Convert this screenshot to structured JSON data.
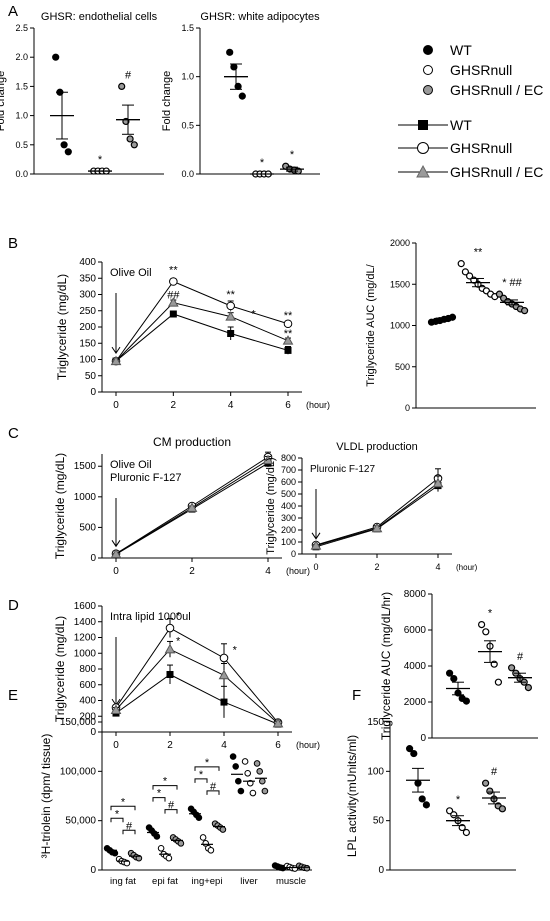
{
  "panels": {
    "A": "A",
    "B": "B",
    "C": "C",
    "D": "D",
    "E": "E",
    "F": "F"
  },
  "legend_points": [
    "WT",
    "GHSRnull",
    "GHSRnull / EC"
  ],
  "legend_lines": [
    "WT",
    "GHSRnull",
    "GHSRnull / EC"
  ],
  "colors": {
    "wt": "#000000",
    "null": "#ffffff",
    "ec": "#9a9a9a",
    "axis": "#000000"
  },
  "chart_data": [
    {
      "id": "A1",
      "type": "scatter",
      "title": "GHSR: endothelial cells",
      "ylabel": "Fold change",
      "ylim": [
        0,
        2.5
      ],
      "yticks": [
        "0.0",
        "0.5",
        "1.0",
        "1.5",
        "2.0",
        "2.5"
      ],
      "groups": [
        {
          "name": "WT",
          "mean": 1.0,
          "sem": 0.4,
          "points": [
            2.0,
            1.4,
            0.5,
            0.38
          ],
          "mark": ""
        },
        {
          "name": "GHSRnull",
          "mean": 0.05,
          "sem": 0.0,
          "points": [
            0.05,
            0.05,
            0.05,
            0.05
          ],
          "mark": "*"
        },
        {
          "name": "GHSRnull / EC",
          "mean": 0.93,
          "sem": 0.25,
          "points": [
            1.5,
            0.9,
            0.6,
            0.5
          ],
          "mark": "#"
        }
      ]
    },
    {
      "id": "A2",
      "type": "scatter",
      "title": "GHSR: white adipocytes",
      "ylabel": "Fold change",
      "ylim": [
        0,
        1.5
      ],
      "yticks": [
        "0.0",
        "0.5",
        "1.0",
        "1.5"
      ],
      "groups": [
        {
          "name": "WT",
          "mean": 1.0,
          "sem": 0.13,
          "points": [
            1.25,
            1.1,
            0.9,
            0.8
          ],
          "mark": ""
        },
        {
          "name": "GHSRnull",
          "mean": 0.0,
          "sem": 0.0,
          "points": [
            0.0,
            0.0,
            0.0,
            0.0
          ],
          "mark": "*"
        },
        {
          "name": "GHSRnull / EC",
          "mean": 0.05,
          "sem": 0.02,
          "points": [
            0.08,
            0.05,
            0.04,
            0.03
          ],
          "mark": "*"
        }
      ]
    },
    {
      "id": "B1",
      "type": "line",
      "ylabel": "Triglyceride (mg/dL)",
      "xunit": "(hour)",
      "x": [
        0,
        2,
        4,
        6
      ],
      "ylim": [
        0,
        400
      ],
      "yticks": [
        "0",
        "50",
        "100",
        "150",
        "200",
        "250",
        "300",
        "350",
        "400"
      ],
      "annotation": "Olive Oil",
      "series": [
        {
          "name": "WT",
          "values": [
            95,
            240,
            180,
            128
          ],
          "err": [
            4,
            5,
            20,
            12
          ]
        },
        {
          "name": "GHSRnull",
          "values": [
            95,
            340,
            265,
            210
          ],
          "err": [
            4,
            8,
            15,
            8
          ]
        },
        {
          "name": "GHSRnull / EC",
          "values": [
            95,
            275,
            232,
            158
          ],
          "err": [
            4,
            8,
            12,
            8
          ]
        }
      ],
      "marks": [
        {
          "x": 2,
          "y": 365,
          "text": "**"
        },
        {
          "x": 2,
          "y": 288,
          "text": "##"
        },
        {
          "x": 4,
          "y": 290,
          "text": "**"
        },
        {
          "x": 4.8,
          "y": 230,
          "text": "*"
        },
        {
          "x": 6,
          "y": 225,
          "text": "**"
        },
        {
          "x": 6,
          "y": 170,
          "text": "**"
        }
      ]
    },
    {
      "id": "B2",
      "type": "scatter",
      "ylabel": "Triglyceride AUC (mg/dL/",
      "ylim": [
        0,
        2000
      ],
      "yticks": [
        "0",
        "500",
        "1000",
        "1500",
        "2000"
      ],
      "groups": [
        {
          "name": "WT",
          "mean": 1070,
          "sem": 20,
          "points": [
            1040,
            1050,
            1060,
            1075,
            1085,
            1100
          ],
          "mark": ""
        },
        {
          "name": "GHSRnull",
          "mean": 1520,
          "sem": 50,
          "points": [
            1750,
            1650,
            1600,
            1550,
            1500,
            1450,
            1420,
            1380,
            1350
          ],
          "mark": "**"
        },
        {
          "name": "GHSRnull / EC",
          "mean": 1280,
          "sem": 30,
          "points": [
            1380,
            1330,
            1290,
            1260,
            1230,
            1200,
            1180
          ],
          "mark": "* ##"
        }
      ]
    },
    {
      "id": "C1",
      "type": "line",
      "title": "CM production",
      "ylabel": "Triglyceride (mg/dL)",
      "xunit": "(hour)",
      "x": [
        0,
        2,
        4
      ],
      "ylim": [
        0,
        1700
      ],
      "yticks": [
        "0",
        "500",
        "1000",
        "1500"
      ],
      "annotation": "Olive Oil\nPluronic F-127",
      "series": [
        {
          "name": "WT",
          "values": [
            60,
            800,
            1550
          ],
          "err": [
            10,
            30,
            60
          ]
        },
        {
          "name": "GHSRnull",
          "values": [
            70,
            850,
            1650
          ],
          "err": [
            10,
            30,
            80
          ]
        },
        {
          "name": "GHSRnull / EC",
          "values": [
            65,
            820,
            1600
          ],
          "err": [
            10,
            30,
            60
          ]
        }
      ]
    },
    {
      "id": "C2",
      "type": "line",
      "title": "VLDL production",
      "ylabel": "Triglyceride (mg/dL)",
      "xunit": "(hour)",
      "x": [
        0,
        2,
        4
      ],
      "ylim": [
        0,
        800
      ],
      "yticks": [
        "0",
        "100",
        "200",
        "300",
        "400",
        "500",
        "600",
        "700",
        "800"
      ],
      "annotation": "Pluronic F-127",
      "series": [
        {
          "name": "WT",
          "values": [
            60,
            210,
            570
          ],
          "err": [
            8,
            20,
            50
          ]
        },
        {
          "name": "GHSRnull",
          "values": [
            75,
            225,
            630
          ],
          "err": [
            8,
            20,
            80
          ]
        },
        {
          "name": "GHSRnull / EC",
          "values": [
            70,
            215,
            590
          ],
          "err": [
            8,
            20,
            60
          ]
        }
      ]
    },
    {
      "id": "D1",
      "type": "line",
      "ylabel": "Triglyceride (mg/dL)",
      "xunit": "(hour)",
      "x": [
        0,
        2,
        4,
        6
      ],
      "ylim": [
        0,
        1600
      ],
      "yticks": [
        "0",
        "200",
        "400",
        "600",
        "800",
        "1000",
        "1200",
        "1400",
        "1600"
      ],
      "annotation": "Intra lipid 1000ul",
      "series": [
        {
          "name": "WT",
          "values": [
            240,
            730,
            380,
            100
          ],
          "err": [
            30,
            120,
            200,
            30
          ]
        },
        {
          "name": "GHSRnull",
          "values": [
            310,
            1320,
            940,
            120
          ],
          "err": [
            30,
            120,
            180,
            30
          ]
        },
        {
          "name": "GHSRnull / EC",
          "values": [
            280,
            1050,
            720,
            110
          ],
          "err": [
            30,
            100,
            150,
            30
          ]
        }
      ],
      "marks": [
        {
          "x": 2.3,
          "y": 1430,
          "text": "*"
        },
        {
          "x": 2.3,
          "y": 1110,
          "text": "*"
        },
        {
          "x": 4.4,
          "y": 1000,
          "text": "*"
        }
      ]
    },
    {
      "id": "D2",
      "type": "scatter",
      "ylabel": "Triglyceride AUC (mg/dL/hr)",
      "ylim": [
        0,
        8000
      ],
      "yticks": [
        "0",
        "2000",
        "4000",
        "6000",
        "8000"
      ],
      "groups": [
        {
          "name": "WT",
          "mean": 2750,
          "sem": 350,
          "points": [
            3600,
            3300,
            2500,
            2200,
            2050
          ],
          "mark": ""
        },
        {
          "name": "GHSRnull",
          "mean": 4800,
          "sem": 600,
          "points": [
            6300,
            5900,
            5100,
            4100,
            3100
          ],
          "mark": "*"
        },
        {
          "name": "GHSRnull / EC",
          "mean": 3350,
          "sem": 250,
          "points": [
            3900,
            3600,
            3300,
            3100,
            2800
          ],
          "mark": "#"
        }
      ]
    },
    {
      "id": "E",
      "type": "scatter",
      "ylabel": "³H-triolein (dpm/ tissue)",
      "ylim": [
        0,
        150000
      ],
      "yticks": [
        "0",
        "50,000",
        "100,000",
        "150,000"
      ],
      "categories": [
        "ing fat",
        "epi fat",
        "ing+epi",
        "liver",
        "muscle"
      ],
      "groups": [
        {
          "category": "ing fat",
          "series": "WT",
          "mean": 20000,
          "points": [
            22000,
            20000,
            18000,
            17000
          ]
        },
        {
          "category": "ing fat",
          "series": "GHSRnull",
          "mean": 9000,
          "points": [
            11000,
            9000,
            8000,
            7000
          ]
        },
        {
          "category": "ing fat",
          "series": "GHSRnull / EC",
          "mean": 14000,
          "points": [
            17000,
            15000,
            13000,
            12000
          ]
        },
        {
          "category": "epi fat",
          "series": "WT",
          "mean": 38000,
          "points": [
            43000,
            40000,
            37000,
            34000
          ]
        },
        {
          "category": "epi fat",
          "series": "GHSRnull",
          "mean": 16000,
          "points": [
            22000,
            16000,
            14000,
            12000
          ]
        },
        {
          "category": "epi fat",
          "series": "GHSRnull / EC",
          "mean": 30000,
          "points": [
            33000,
            31000,
            29000,
            27000
          ]
        },
        {
          "category": "ing+epi",
          "series": "WT",
          "mean": 57000,
          "points": [
            62000,
            59000,
            56000,
            53000
          ]
        },
        {
          "category": "ing+epi",
          "series": "GHSRnull",
          "mean": 26000,
          "points": [
            33000,
            27000,
            22000,
            20000
          ]
        },
        {
          "category": "ing+epi",
          "series": "GHSRnull / EC",
          "mean": 44000,
          "points": [
            47000,
            45000,
            43000,
            41000
          ]
        },
        {
          "category": "liver",
          "series": "WT",
          "mean": 97000,
          "points": [
            115000,
            105000,
            90000,
            80000
          ]
        },
        {
          "category": "liver",
          "series": "GHSRnull",
          "mean": 90000,
          "points": [
            110000,
            98000,
            88000,
            78000
          ]
        },
        {
          "category": "liver",
          "series": "GHSRnull / EC",
          "mean": 93000,
          "points": [
            108000,
            100000,
            90000,
            80000
          ]
        },
        {
          "category": "muscle",
          "series": "WT",
          "mean": 3000,
          "points": [
            4500,
            3500,
            2500,
            2000
          ]
        },
        {
          "category": "muscle",
          "series": "GHSRnull",
          "mean": 2500,
          "points": [
            4000,
            3000,
            2000,
            1500
          ]
        },
        {
          "category": "muscle",
          "series": "GHSRnull / EC",
          "mean": 2800,
          "points": [
            4200,
            3200,
            2300,
            1800
          ]
        }
      ],
      "brackets": [
        {
          "category": "ing fat",
          "from": 0,
          "to": 2,
          "level": 3,
          "text": "*"
        },
        {
          "category": "ing fat",
          "from": 0,
          "to": 1,
          "level": 2,
          "text": "*"
        },
        {
          "category": "ing fat",
          "from": 1,
          "to": 2,
          "level": 1,
          "text": "#"
        },
        {
          "category": "epi fat",
          "from": 0,
          "to": 2,
          "level": 3,
          "text": "*"
        },
        {
          "category": "epi fat",
          "from": 0,
          "to": 1,
          "level": 2,
          "text": "*"
        },
        {
          "category": "epi fat",
          "from": 1,
          "to": 2,
          "level": 1,
          "text": "#"
        },
        {
          "category": "ing+epi",
          "from": 0,
          "to": 2,
          "level": 3,
          "text": "*"
        },
        {
          "category": "ing+epi",
          "from": 0,
          "to": 1,
          "level": 2,
          "text": "*"
        },
        {
          "category": "ing+epi",
          "from": 1,
          "to": 2,
          "level": 1,
          "text": "#"
        }
      ]
    },
    {
      "id": "F",
      "type": "scatter",
      "ylabel": "LPL activity(mUnits/ml)",
      "ylim": [
        0,
        150
      ],
      "yticks": [
        "0",
        "50",
        "100",
        "150"
      ],
      "groups": [
        {
          "name": "WT",
          "mean": 91,
          "sem": 12,
          "points": [
            123,
            118,
            88,
            72,
            66
          ],
          "mark": ""
        },
        {
          "name": "GHSRnull",
          "mean": 50,
          "sem": 5,
          "points": [
            60,
            56,
            50,
            43,
            38
          ],
          "mark": "*"
        },
        {
          "name": "GHSRnull / EC",
          "mean": 73,
          "sem": 6,
          "points": [
            88,
            80,
            72,
            65,
            62
          ],
          "mark": "#"
        }
      ]
    }
  ]
}
